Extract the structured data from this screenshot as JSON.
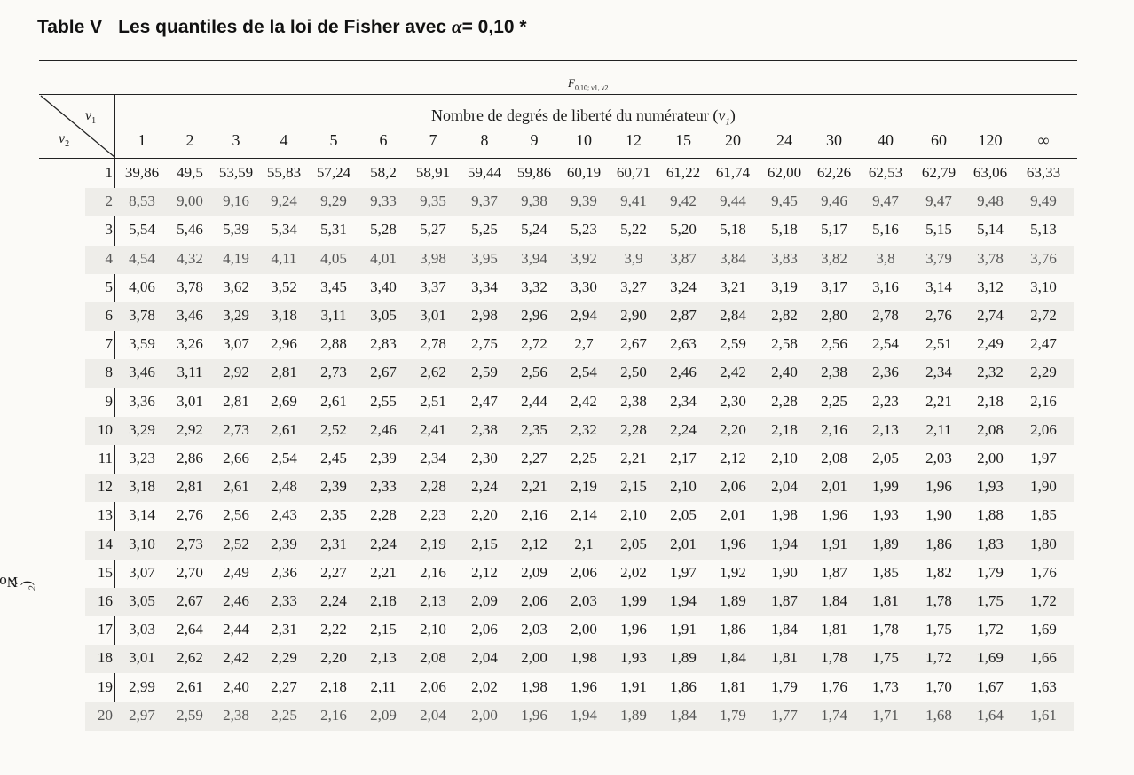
{
  "header": {
    "table_label": "Table V",
    "title_before": "Les quantiles de la loi de Fisher avec ",
    "alpha_symbol": "α",
    "title_after": "= 0,10 *",
    "f_symbol": "F",
    "f_subscript": "0,10; ν1, ν2"
  },
  "axes": {
    "numerator_label": "Nombre de degrés de liberté du numérateur (",
    "numerator_var": "ν",
    "numerator_sub": "1",
    "denominator_label": "Nombre de degrés de liberté du dénominateur (",
    "denominator_var": "ν",
    "denominator_sub": "2",
    "corner_v1": "ν",
    "corner_v1_sub": "1",
    "corner_v2": "ν",
    "corner_v2_sub": "2"
  },
  "columns": [
    "1",
    "2",
    "3",
    "4",
    "5",
    "6",
    "7",
    "8",
    "9",
    "10",
    "12",
    "15",
    "20",
    "24",
    "30",
    "40",
    "60",
    "120",
    "∞"
  ],
  "rows": [
    {
      "df": "1",
      "values": [
        "39,86",
        "49,5",
        "53,59",
        "55,83",
        "57,24",
        "58,2",
        "58,91",
        "59,44",
        "59,86",
        "60,19",
        "60,71",
        "61,22",
        "61,74",
        "62,00",
        "62,26",
        "62,53",
        "62,79",
        "63,06",
        "63,33"
      ]
    },
    {
      "df": "2",
      "values": [
        "8,53",
        "9,00",
        "9,16",
        "9,24",
        "9,29",
        "9,33",
        "9,35",
        "9,37",
        "9,38",
        "9,39",
        "9,41",
        "9,42",
        "9,44",
        "9,45",
        "9,46",
        "9,47",
        "9,47",
        "9,48",
        "9,49"
      ]
    },
    {
      "df": "3",
      "values": [
        "5,54",
        "5,46",
        "5,39",
        "5,34",
        "5,31",
        "5,28",
        "5,27",
        "5,25",
        "5,24",
        "5,23",
        "5,22",
        "5,20",
        "5,18",
        "5,18",
        "5,17",
        "5,16",
        "5,15",
        "5,14",
        "5,13"
      ]
    },
    {
      "df": "4",
      "values": [
        "4,54",
        "4,32",
        "4,19",
        "4,11",
        "4,05",
        "4,01",
        "3,98",
        "3,95",
        "3,94",
        "3,92",
        "3,9",
        "3,87",
        "3,84",
        "3,83",
        "3,82",
        "3,8",
        "3,79",
        "3,78",
        "3,76"
      ]
    },
    {
      "df": "5",
      "values": [
        "4,06",
        "3,78",
        "3,62",
        "3,52",
        "3,45",
        "3,40",
        "3,37",
        "3,34",
        "3,32",
        "3,30",
        "3,27",
        "3,24",
        "3,21",
        "3,19",
        "3,17",
        "3,16",
        "3,14",
        "3,12",
        "3,10"
      ]
    },
    {
      "df": "6",
      "values": [
        "3,78",
        "3,46",
        "3,29",
        "3,18",
        "3,11",
        "3,05",
        "3,01",
        "2,98",
        "2,96",
        "2,94",
        "2,90",
        "2,87",
        "2,84",
        "2,82",
        "2,80",
        "2,78",
        "2,76",
        "2,74",
        "2,72"
      ]
    },
    {
      "df": "7",
      "values": [
        "3,59",
        "3,26",
        "3,07",
        "2,96",
        "2,88",
        "2,83",
        "2,78",
        "2,75",
        "2,72",
        "2,7",
        "2,67",
        "2,63",
        "2,59",
        "2,58",
        "2,56",
        "2,54",
        "2,51",
        "2,49",
        "2,47"
      ]
    },
    {
      "df": "8",
      "values": [
        "3,46",
        "3,11",
        "2,92",
        "2,81",
        "2,73",
        "2,67",
        "2,62",
        "2,59",
        "2,56",
        "2,54",
        "2,50",
        "2,46",
        "2,42",
        "2,40",
        "2,38",
        "2,36",
        "2,34",
        "2,32",
        "2,29"
      ]
    },
    {
      "df": "9",
      "values": [
        "3,36",
        "3,01",
        "2,81",
        "2,69",
        "2,61",
        "2,55",
        "2,51",
        "2,47",
        "2,44",
        "2,42",
        "2,38",
        "2,34",
        "2,30",
        "2,28",
        "2,25",
        "2,23",
        "2,21",
        "2,18",
        "2,16"
      ]
    },
    {
      "df": "10",
      "values": [
        "3,29",
        "2,92",
        "2,73",
        "2,61",
        "2,52",
        "2,46",
        "2,41",
        "2,38",
        "2,35",
        "2,32",
        "2,28",
        "2,24",
        "2,20",
        "2,18",
        "2,16",
        "2,13",
        "2,11",
        "2,08",
        "2,06"
      ]
    },
    {
      "df": "11",
      "values": [
        "3,23",
        "2,86",
        "2,66",
        "2,54",
        "2,45",
        "2,39",
        "2,34",
        "2,30",
        "2,27",
        "2,25",
        "2,21",
        "2,17",
        "2,12",
        "2,10",
        "2,08",
        "2,05",
        "2,03",
        "2,00",
        "1,97"
      ]
    },
    {
      "df": "12",
      "values": [
        "3,18",
        "2,81",
        "2,61",
        "2,48",
        "2,39",
        "2,33",
        "2,28",
        "2,24",
        "2,21",
        "2,19",
        "2,15",
        "2,10",
        "2,06",
        "2,04",
        "2,01",
        "1,99",
        "1,96",
        "1,93",
        "1,90"
      ]
    },
    {
      "df": "13",
      "values": [
        "3,14",
        "2,76",
        "2,56",
        "2,43",
        "2,35",
        "2,28",
        "2,23",
        "2,20",
        "2,16",
        "2,14",
        "2,10",
        "2,05",
        "2,01",
        "1,98",
        "1,96",
        "1,93",
        "1,90",
        "1,88",
        "1,85"
      ]
    },
    {
      "df": "14",
      "values": [
        "3,10",
        "2,73",
        "2,52",
        "2,39",
        "2,31",
        "2,24",
        "2,19",
        "2,15",
        "2,12",
        "2,1",
        "2,05",
        "2,01",
        "1,96",
        "1,94",
        "1,91",
        "1,89",
        "1,86",
        "1,83",
        "1,80"
      ]
    },
    {
      "df": "15",
      "values": [
        "3,07",
        "2,70",
        "2,49",
        "2,36",
        "2,27",
        "2,21",
        "2,16",
        "2,12",
        "2,09",
        "2,06",
        "2,02",
        "1,97",
        "1,92",
        "1,90",
        "1,87",
        "1,85",
        "1,82",
        "1,79",
        "1,76"
      ]
    },
    {
      "df": "16",
      "values": [
        "3,05",
        "2,67",
        "2,46",
        "2,33",
        "2,24",
        "2,18",
        "2,13",
        "2,09",
        "2,06",
        "2,03",
        "1,99",
        "1,94",
        "1,89",
        "1,87",
        "1,84",
        "1,81",
        "1,78",
        "1,75",
        "1,72"
      ]
    },
    {
      "df": "17",
      "values": [
        "3,03",
        "2,64",
        "2,44",
        "2,31",
        "2,22",
        "2,15",
        "2,10",
        "2,06",
        "2,03",
        "2,00",
        "1,96",
        "1,91",
        "1,86",
        "1,84",
        "1,81",
        "1,78",
        "1,75",
        "1,72",
        "1,69"
      ]
    },
    {
      "df": "18",
      "values": [
        "3,01",
        "2,62",
        "2,42",
        "2,29",
        "2,20",
        "2,13",
        "2,08",
        "2,04",
        "2,00",
        "1,98",
        "1,93",
        "1,89",
        "1,84",
        "1,81",
        "1,78",
        "1,75",
        "1,72",
        "1,69",
        "1,66"
      ]
    },
    {
      "df": "19",
      "values": [
        "2,99",
        "2,61",
        "2,40",
        "2,27",
        "2,18",
        "2,11",
        "2,06",
        "2,02",
        "1,98",
        "1,96",
        "1,91",
        "1,86",
        "1,81",
        "1,79",
        "1,76",
        "1,73",
        "1,70",
        "1,67",
        "1,63"
      ]
    },
    {
      "df": "20",
      "values": [
        "2,97",
        "2,59",
        "2,38",
        "2,25",
        "2,16",
        "2,09",
        "2,04",
        "2,00",
        "1,96",
        "1,94",
        "1,89",
        "1,84",
        "1,79",
        "1,77",
        "1,74",
        "1,71",
        "1,68",
        "1,64",
        "1,61"
      ]
    }
  ]
}
